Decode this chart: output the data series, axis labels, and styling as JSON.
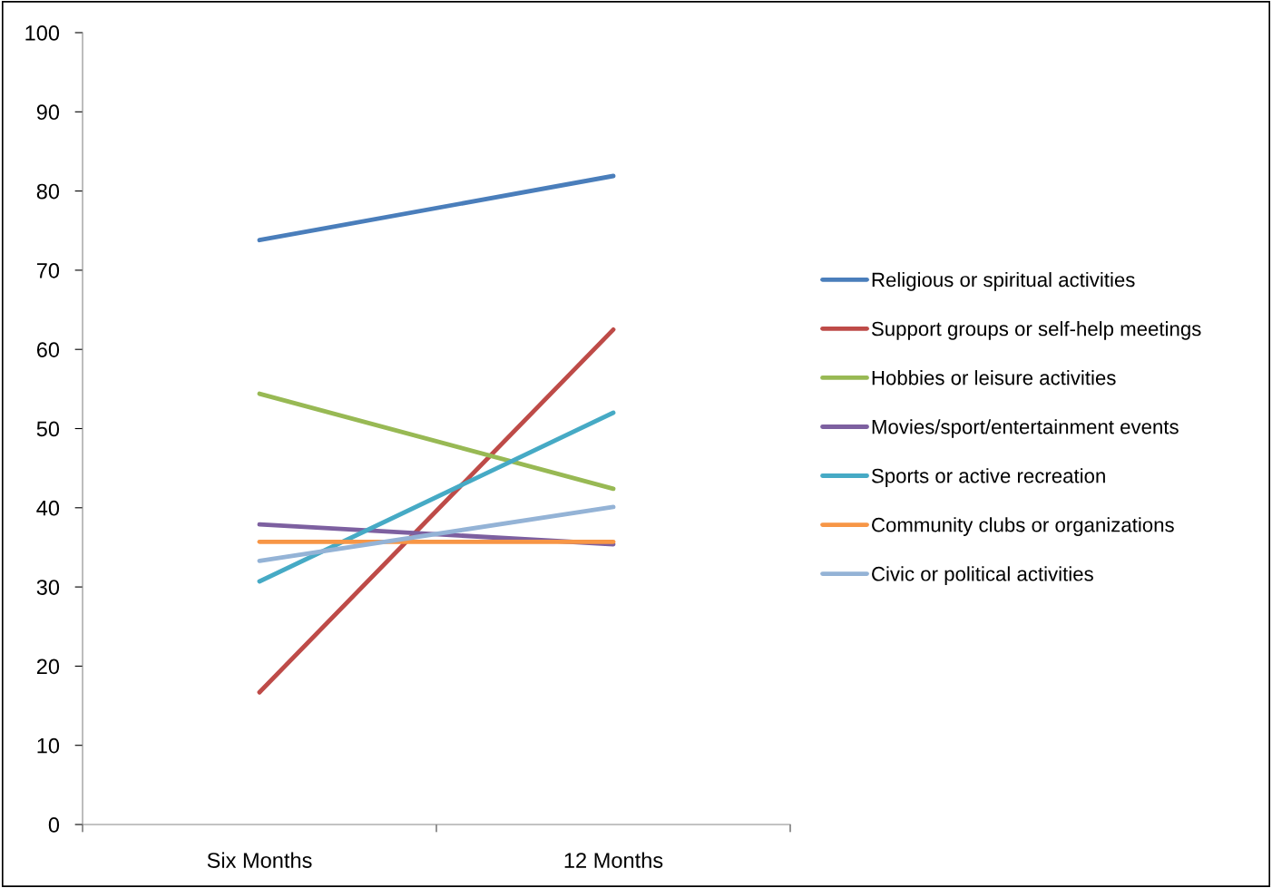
{
  "chart_data": {
    "type": "line",
    "categories": [
      "Six Months",
      "12 Months"
    ],
    "series": [
      {
        "name": "Religious or spiritual activities",
        "color": "#4a7ebb",
        "values": [
          73.8,
          81.9
        ]
      },
      {
        "name": "Support groups or self-help meetings",
        "color": "#be4b48",
        "values": [
          16.7,
          62.5
        ]
      },
      {
        "name": "Hobbies or leisure activities",
        "color": "#98b954",
        "values": [
          54.4,
          42.4
        ]
      },
      {
        "name": "Movies/sport/entertainment events",
        "color": "#7d60a0",
        "values": [
          37.9,
          35.4
        ]
      },
      {
        "name": "Sports or active recreation",
        "color": "#46aac5",
        "values": [
          30.7,
          52.0
        ]
      },
      {
        "name": "Community clubs or organizations",
        "color": "#f79646",
        "values": [
          35.7,
          35.7
        ]
      },
      {
        "name": "Civic or political activities",
        "color": "#94b3d6",
        "values": [
          33.3,
          40.1
        ]
      }
    ],
    "ylim": [
      0,
      100
    ],
    "yticks": [
      0,
      10,
      20,
      30,
      40,
      50,
      60,
      70,
      80,
      90,
      100
    ],
    "grid": false,
    "legend": "right",
    "marker": "none",
    "line_style": "solid"
  }
}
